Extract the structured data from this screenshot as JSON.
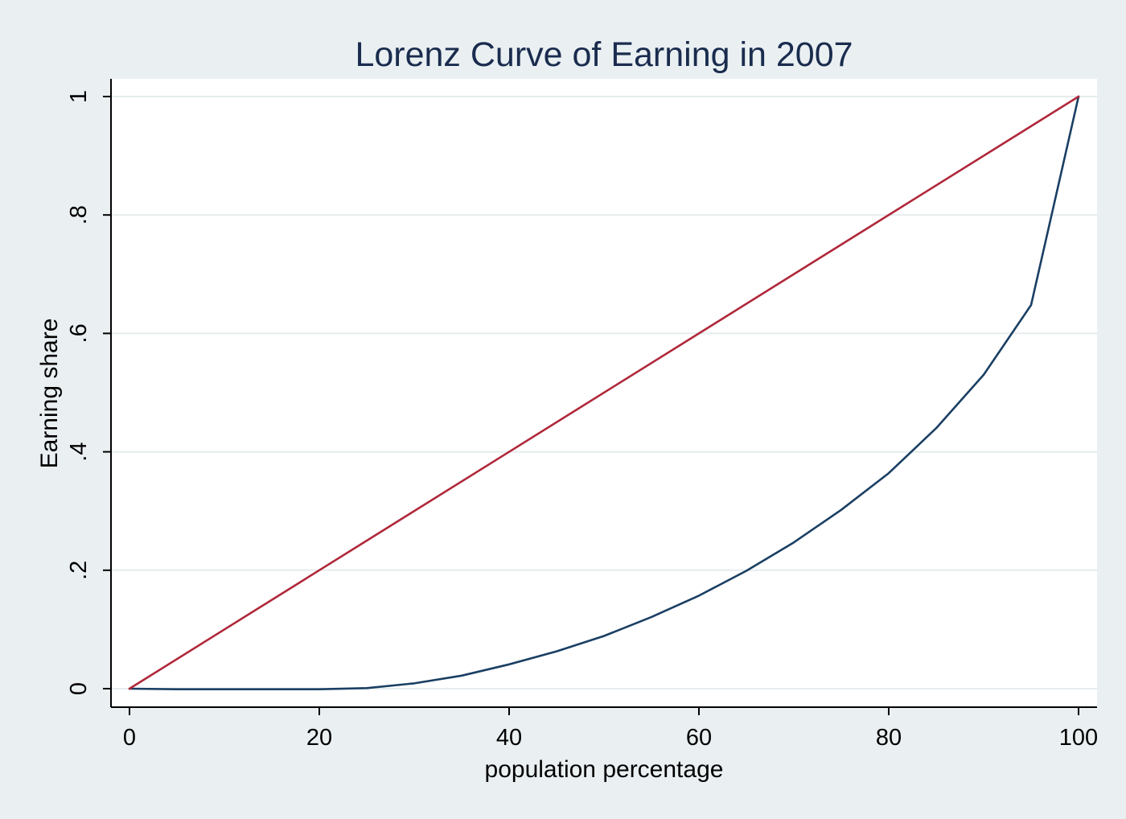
{
  "chart_data": {
    "type": "line",
    "title": "Lorenz Curve of Earning in 2007",
    "xlabel": "population percentage",
    "ylabel": "Earning share",
    "xlim": [
      0,
      100
    ],
    "ylim": [
      0,
      1
    ],
    "x_ticks": [
      {
        "value": 0,
        "label": "0"
      },
      {
        "value": 20,
        "label": "20"
      },
      {
        "value": 40,
        "label": "40"
      },
      {
        "value": 60,
        "label": "60"
      },
      {
        "value": 80,
        "label": "80"
      },
      {
        "value": 100,
        "label": "100"
      }
    ],
    "y_ticks": [
      {
        "value": 0,
        "label": "0"
      },
      {
        "value": 0.2,
        "label": ".2"
      },
      {
        "value": 0.4,
        "label": ".4"
      },
      {
        "value": 0.6,
        "label": ".6"
      },
      {
        "value": 0.8,
        "label": ".8"
      },
      {
        "value": 1,
        "label": "1"
      }
    ],
    "grid": true,
    "legend": "none",
    "series": [
      {
        "color": "#1a3f63",
        "x": [
          0,
          5,
          10,
          15,
          20,
          25,
          30,
          35,
          40,
          45,
          50,
          55,
          60,
          65,
          70,
          75,
          80,
          85,
          90,
          95,
          100
        ],
        "y": [
          0,
          -0.001,
          -0.001,
          -0.001,
          -0.001,
          0.001,
          0.009,
          0.022,
          0.041,
          0.063,
          0.089,
          0.121,
          0.157,
          0.199,
          0.247,
          0.302,
          0.364,
          0.44,
          0.53,
          0.648,
          1.0
        ]
      },
      {
        "color": "#b0283a",
        "x": [
          0,
          100
        ],
        "y": [
          0,
          1
        ]
      }
    ]
  },
  "colors": {
    "background": "#eaf0f2",
    "plot_background": "#ffffff",
    "grid": "#e6ecee",
    "title": "#1a2c4e"
  }
}
